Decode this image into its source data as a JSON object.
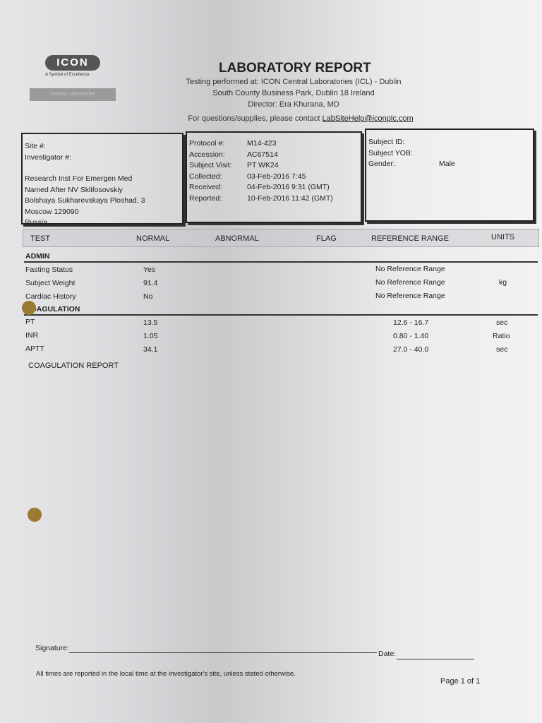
{
  "logo": {
    "name": "ICON",
    "tagline": "A Symbol of Excellence",
    "division": "Central Laboratories"
  },
  "header": {
    "title": "LABORATORY REPORT",
    "testing": "Testing performed at: ICON Central Laboratories (ICL) - Dublin",
    "address": "South County Business Park, Dublin 18 Ireland",
    "director": "Director: Era Khurana, MD",
    "contact_prefix": "For questions/supplies, please contact ",
    "contact_email": "LabSiteHelp@iconplc.com"
  },
  "site_box": {
    "site_label": "Site #:",
    "investigator_label": "Investigator #:",
    "address_lines": [
      "Research Inst For Emergen Med",
      "Named After NV Sklifosovskiy",
      "Bolshaya Sukharevskaya Ploshad, 3",
      "Moscow 129090",
      "Russia"
    ]
  },
  "protocol_box": {
    "rows": [
      {
        "label": "Protocol #:",
        "value": "M14-423"
      },
      {
        "label": "Accession:",
        "value": "AC67514"
      },
      {
        "label": "Subject Visit:",
        "value": "PT WK24"
      },
      {
        "label": "Collected:",
        "value": "03-Feb-2016  7:45"
      },
      {
        "label": "Received:",
        "value": "04-Feb-2016  9:31 (GMT)"
      },
      {
        "label": "Reported:",
        "value": "10-Feb-2016  11:42 (GMT)"
      }
    ]
  },
  "subject_box": {
    "id_label": "Subject ID:",
    "yob_label": "Subject YOB:",
    "gender_label": "Gender:",
    "gender": "Male"
  },
  "table": {
    "columns": [
      "TEST",
      "NORMAL",
      "ABNORMAL",
      "FLAG",
      "REFERENCE RANGE",
      "UNITS"
    ],
    "sections": [
      {
        "name": "ADMIN",
        "rows": [
          {
            "test": "Fasting Status",
            "normal": "Yes",
            "range": "No Reference Range",
            "units": ""
          },
          {
            "test": "Subject Weight",
            "normal": "91.4",
            "range": "No Reference Range",
            "units": "kg"
          },
          {
            "test": "Cardiac History",
            "normal": "No",
            "range": "No Reference Range",
            "units": ""
          }
        ]
      },
      {
        "name": "COAGULATION",
        "rows": [
          {
            "test": "PT",
            "normal": "13.5",
            "range": "12.6 - 16.7",
            "units": "sec"
          },
          {
            "test": "INR",
            "normal": "1.05",
            "range": "0.80 - 1.40",
            "units": "Ratio"
          },
          {
            "test": "APTT",
            "normal": "34.1",
            "range": "27.0 - 40.0",
            "units": "sec"
          }
        ]
      }
    ]
  },
  "report_note": "COAGULATION REPORT",
  "footer": {
    "signature_label": "Signature:",
    "date_label": "Date:",
    "note": "All times are reported in the local time at the investigator's site, unless stated otherwise.",
    "page": "Page 1 of 1"
  }
}
